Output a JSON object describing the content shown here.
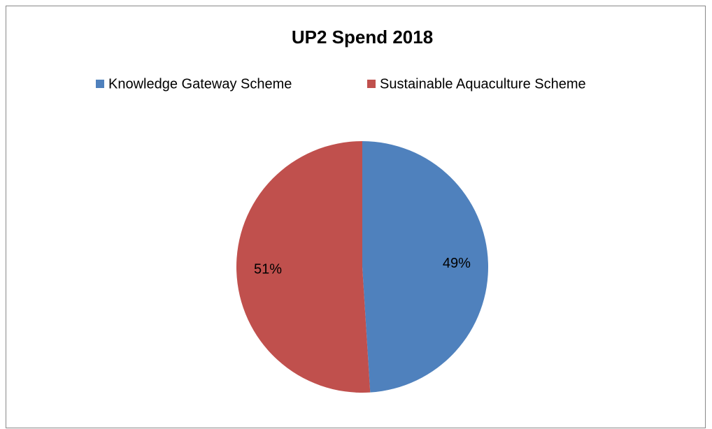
{
  "chart_data": {
    "type": "pie",
    "title": "UP2 Spend 2018",
    "categories": [
      "Knowledge Gateway Scheme",
      "Sustainable Aquaculture Scheme"
    ],
    "values": [
      49,
      51
    ],
    "value_labels": [
      "49%",
      "51%"
    ],
    "colors": [
      "#4f81bd",
      "#c0504d"
    ],
    "legend": "top"
  }
}
